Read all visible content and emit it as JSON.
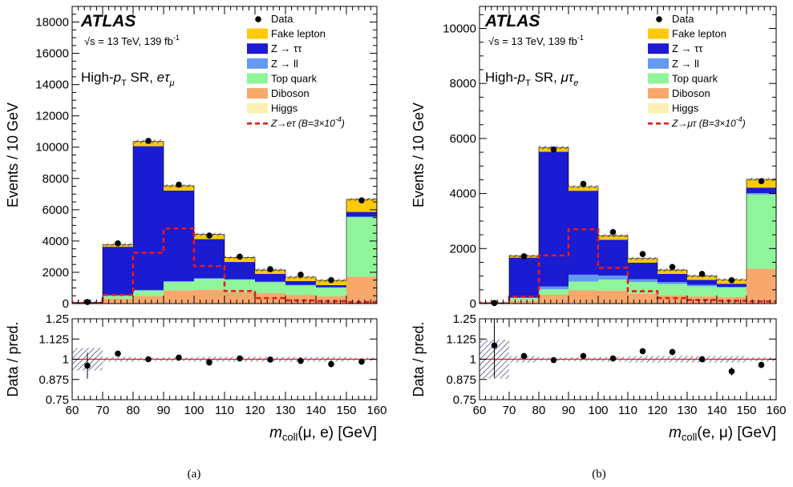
{
  "figure": {
    "captions": [
      "(a)",
      "(b)"
    ]
  },
  "chart_data": [
    {
      "type": "bar",
      "stacked": true,
      "experiment": "ATLAS",
      "energy_label": "√s = 13 TeV, 139 fb",
      "energy_sup": "-1",
      "region_prefix": "High-",
      "region_pt": "p",
      "region_pt_sub": "T",
      "region_mid": " SR, ",
      "region_l1": "eτ",
      "region_l1_sub": "μ",
      "ylabel": "Events / 10 GeV",
      "ratio_ylabel": "Data / pred.",
      "xlabel_m": "m",
      "xlabel_sub": "coll",
      "xlabel_rest": "(μ, e) [GeV]",
      "xlim": [
        60,
        160
      ],
      "ylim": [
        0,
        19000
      ],
      "yticks": [
        0,
        2000,
        4000,
        6000,
        8000,
        10000,
        12000,
        14000,
        16000,
        18000
      ],
      "xticks": [
        60,
        70,
        80,
        90,
        100,
        110,
        120,
        130,
        140,
        150,
        160
      ],
      "ratio_ylim": [
        0.75,
        1.25
      ],
      "ratio_yticks": [
        "0.75",
        "0.875",
        "1",
        "1.125",
        "1.25"
      ],
      "bin_edges": [
        60,
        70,
        80,
        90,
        100,
        110,
        120,
        130,
        140,
        150,
        160
      ],
      "bin_centers": [
        65,
        75,
        85,
        95,
        105,
        115,
        125,
        135,
        145,
        155
      ],
      "series": [
        {
          "name": "Higgs",
          "color": "#fef0b4",
          "values": [
            0,
            10,
            30,
            40,
            30,
            20,
            15,
            10,
            10,
            20
          ]
        },
        {
          "name": "Diboson",
          "color": "#f8a86c",
          "values": [
            10,
            300,
            450,
            800,
            850,
            700,
            650,
            550,
            450,
            1700
          ]
        },
        {
          "name": "Top quark",
          "color": "#8ff59a",
          "values": [
            10,
            200,
            350,
            550,
            700,
            800,
            700,
            600,
            550,
            3800
          ]
        },
        {
          "name": "Z → ll",
          "color": "#6399f0",
          "values": [
            0,
            20,
            30,
            40,
            40,
            40,
            35,
            30,
            30,
            40
          ]
        },
        {
          "name": "Z → ττ",
          "color": "#1b1bd1",
          "values": [
            40,
            3100,
            9200,
            5800,
            2500,
            1100,
            500,
            250,
            140,
            300
          ]
        },
        {
          "name": "Fake lepton",
          "color": "#ffca0a",
          "values": [
            20,
            140,
            300,
            300,
            300,
            280,
            250,
            250,
            300,
            800
          ]
        }
      ],
      "signal": {
        "name": "Z→eτ (B=3×10",
        "name_sup": "-4",
        "name_end": ")",
        "color": "#e41a1c",
        "values": [
          20,
          550,
          3250,
          4800,
          2400,
          800,
          350,
          200,
          150,
          100
        ]
      },
      "data": {
        "name": "Data",
        "values": [
          100,
          3850,
          10400,
          7600,
          4350,
          3000,
          2200,
          1850,
          1500,
          6600
        ]
      },
      "ratio": [
        0.96,
        1.035,
        1.0,
        1.01,
        0.98,
        1.005,
        0.998,
        0.99,
        0.97,
        0.985
      ],
      "ratio_err": [
        0.08,
        0.015,
        0.01,
        0.01,
        0.015,
        0.015,
        0.015,
        0.02,
        0.02,
        0.01
      ],
      "band_unc": [
        0.07,
        0.015,
        0.01,
        0.012,
        0.015,
        0.015,
        0.015,
        0.015,
        0.015,
        0.01
      ]
    },
    {
      "type": "bar",
      "stacked": true,
      "experiment": "ATLAS",
      "energy_label": "√s = 13 TeV, 139 fb",
      "energy_sup": "-1",
      "region_prefix": "High-",
      "region_pt": "p",
      "region_pt_sub": "T",
      "region_mid": " SR, ",
      "region_l1": "μτ",
      "region_l1_sub": "e",
      "ylabel": "Events / 10 GeV",
      "ratio_ylabel": "Data / pred.",
      "xlabel_m": "m",
      "xlabel_sub": "coll",
      "xlabel_rest": "(e, μ) [GeV]",
      "xlim": [
        60,
        160
      ],
      "ylim": [
        0,
        10800
      ],
      "yticks": [
        0,
        2000,
        4000,
        6000,
        8000,
        10000
      ],
      "xticks": [
        60,
        70,
        80,
        90,
        100,
        110,
        120,
        130,
        140,
        150,
        160
      ],
      "ratio_ylim": [
        0.75,
        1.25
      ],
      "ratio_yticks": [
        "0.75",
        "0.875",
        "1",
        "1.125",
        "1.25"
      ],
      "bin_edges": [
        60,
        70,
        80,
        90,
        100,
        110,
        120,
        130,
        140,
        150,
        160
      ],
      "bin_centers": [
        65,
        75,
        85,
        95,
        105,
        115,
        125,
        135,
        145,
        155
      ],
      "series": [
        {
          "name": "Higgs",
          "color": "#fef0b4",
          "values": [
            0,
            10,
            20,
            30,
            20,
            15,
            10,
            10,
            10,
            15
          ]
        },
        {
          "name": "Diboson",
          "color": "#f8a86c",
          "values": [
            5,
            100,
            300,
            450,
            450,
            350,
            300,
            250,
            230,
            1250
          ]
        },
        {
          "name": "Top quark",
          "color": "#8ff59a",
          "values": [
            5,
            90,
            200,
            320,
            400,
            420,
            400,
            370,
            340,
            2700
          ]
        },
        {
          "name": "Z → ll",
          "color": "#6399f0",
          "values": [
            0,
            20,
            100,
            250,
            150,
            100,
            70,
            50,
            30,
            50
          ]
        },
        {
          "name": "Z → ττ",
          "color": "#1b1bd1",
          "values": [
            10,
            1450,
            4900,
            3050,
            1300,
            600,
            300,
            180,
            110,
            200
          ]
        },
        {
          "name": "Fake lepton",
          "color": "#ffca0a",
          "values": [
            5,
            60,
            150,
            150,
            150,
            150,
            140,
            140,
            150,
            300
          ]
        }
      ],
      "signal": {
        "name": "Z→μτ (B=3×10",
        "name_sup": "-4",
        "name_end": ")",
        "color": "#e41a1c",
        "values": [
          10,
          250,
          1750,
          2700,
          1300,
          450,
          200,
          130,
          100,
          80
        ]
      },
      "data": {
        "name": "Data",
        "values": [
          20,
          1720,
          5600,
          4350,
          2600,
          1800,
          1330,
          1080,
          850,
          4450
        ]
      },
      "ratio": [
        1.085,
        1.02,
        0.995,
        1.02,
        1.005,
        1.05,
        1.045,
        1.0,
        0.925,
        0.965
      ],
      "ratio_err": [
        0.2,
        0.015,
        0.01,
        0.01,
        0.015,
        0.015,
        0.02,
        0.02,
        0.025,
        0.01
      ],
      "band_unc": [
        0.12,
        0.02,
        0.01,
        0.012,
        0.015,
        0.02,
        0.02,
        0.02,
        0.02,
        0.012
      ]
    }
  ]
}
